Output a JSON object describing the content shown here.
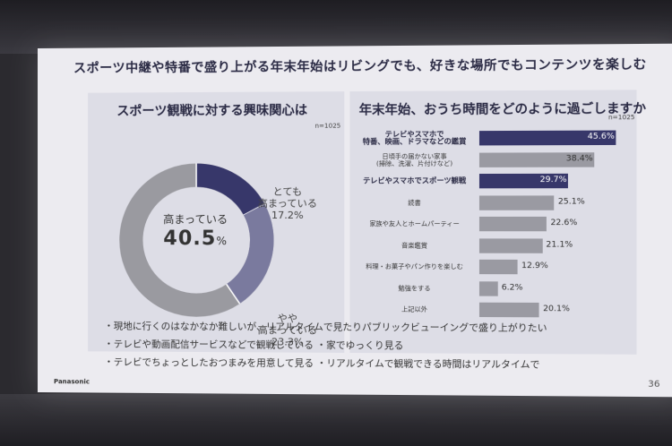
{
  "slide": {
    "title": "スポーツ中継や特番で盛り上がる年末年始はリビングでも、好きな場所でもコンテンツを楽しむ",
    "brand": "Panasonic",
    "page_number": "36"
  },
  "left_panel": {
    "title": "スポーツ観戦に対する興味関心は",
    "n": "n=1025",
    "center_label": "高まっている",
    "center_value": "40.5",
    "center_unit": "%",
    "segments": [
      {
        "label": "とても\n高まっている",
        "pct": "17.2%"
      },
      {
        "label": "やや\n高まっている",
        "pct": "23.3%"
      }
    ]
  },
  "right_panel": {
    "title": "年末年始、おうち時間をどのように過ごしますか",
    "n": "n=1025"
  },
  "bullets": [
    "・現地に行くのはなかなか難しいが、リアルタイムで見たりパブリックビューイングで盛り上がりたい",
    "・テレビや動画配信サービスなどで観戦している  ・家でゆっくり見る",
    "・テレビでちょっとしたおつまみを用意して見る  ・リアルタイムで観戦できる時間はリアルタイムで"
  ],
  "chart_data": [
    {
      "type": "pie",
      "title": "スポーツ観戦に対する興味関心は",
      "categories": [
        "とても高まっている",
        "やや高まっている"
      ],
      "values": [
        17.2,
        23.3
      ],
      "colors": {
        "とても高まっている": "#37376a",
        "やや高まっている": "#7a7a9e",
        "remainder": "#9a9aa0"
      }
    },
    {
      "type": "bar",
      "title": "年末年始、おうち時間をどのように過ごしますか",
      "categories": [
        "テレビやスマホで\n特番、映画、ドラマなどの鑑賞",
        "日頃手の届かない家事\n(掃除、洗濯、片付けなど)",
        "テレビやスマホでスポーツ観戦",
        "読書",
        "家族や友人とホームパーティー",
        "音楽鑑賞",
        "料理・お菓子やパン作りを楽しむ",
        "勉強をする",
        "上記以外"
      ],
      "values": [
        45.6,
        38.4,
        29.7,
        25.1,
        22.6,
        21.1,
        12.9,
        6.2,
        20.1
      ],
      "labels": [
        "45.6%",
        "38.4%",
        "29.7%",
        "25.1%",
        "22.6%",
        "21.1%",
        "12.9%",
        "6.2%",
        "20.1%"
      ],
      "highlighted": [
        0,
        2
      ],
      "colors": {
        "highlight": "#37376a",
        "default": "#9a9aa2"
      },
      "xlim": [
        0,
        50
      ]
    }
  ]
}
